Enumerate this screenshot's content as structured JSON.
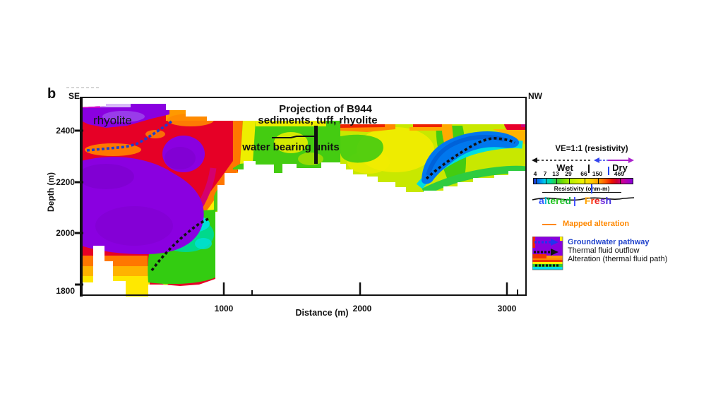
{
  "panel_label": "b",
  "plot": {
    "corner_left": "SE",
    "corner_right": "NW",
    "xlabel": "Distance (m)",
    "ylabel": "Depth (m)",
    "x_tick_labels": [
      "1000",
      "2000",
      "3000"
    ],
    "y_tick_labels": [
      "2400",
      "2200",
      "2000",
      "1800"
    ],
    "annotations": {
      "rhyolite": "rhyolite",
      "projection_line1": "Projection of B944",
      "projection_line2": "sediments, tuff, rhyolite",
      "water_bearing": "water bearing units"
    }
  },
  "legend": {
    "ve_label": "VE=1:1 (resistivity)",
    "wet": "Wet",
    "dry": "Dry",
    "divider": "|",
    "colorbar_values": [
      "4",
      "7",
      "13",
      "29",
      "66",
      "150",
      "469"
    ],
    "colorbar_label": "Resistivity (ohm-m)",
    "altered_word": "altered",
    "altered_letter_colors": [
      "#3355ff",
      "#00bbdd",
      "#11bb55",
      "#22c522",
      "#2ec522",
      "#22c522",
      "#15b53a"
    ],
    "fresh_word": "Fresh",
    "fresh_letter_colors": [
      "#ffa200",
      "#ff3300",
      "#ee2222",
      "#7733dd",
      "#4433dd"
    ],
    "items": [
      {
        "label": "Mapped alteration",
        "color": "#ff8800",
        "symbol": "orange-line"
      },
      {
        "label": "Groundwater pathway",
        "color": "#2244cc",
        "symbol": "blue-dashed-arrow"
      },
      {
        "label": "Thermal fluid outflow",
        "color": "#111111",
        "symbol": "black-dashed-arrow"
      },
      {
        "label": "Alteration (thermal fluid path)",
        "color": "#111111",
        "symbol": "black-dashed-line"
      }
    ]
  },
  "colors": {
    "purple_high_res": "#8a00e0",
    "red": "#e60026",
    "orange": "#ff7700",
    "yellow": "#ffe800",
    "green": "#33cc11",
    "cyan": "#00e0d8",
    "blue_low_res": "#0077ee",
    "groundwater_blue": "#2244cc",
    "mapped_alteration_orange": "#ff8800"
  },
  "chart_data": {
    "type": "heatmap",
    "subtype": "resistivity-cross-section",
    "xlabel": "Distance (m)",
    "ylabel": "Depth (m)",
    "xlim": [
      0,
      3180
    ],
    "ylim": [
      1800,
      2520
    ],
    "x_ticks": [
      1000,
      2000,
      3000
    ],
    "y_ticks": [
      2400,
      2200,
      2000,
      1800
    ],
    "orientation": {
      "left": "SE",
      "right": "NW"
    },
    "colorbar": {
      "label": "Resistivity (ohm-m)",
      "tick_values": [
        4,
        7,
        13,
        29,
        66,
        150,
        469
      ],
      "scale": "log",
      "wet_range_ohm_m": [
        4,
        150
      ],
      "dry_range_ohm_m": [
        150,
        469
      ],
      "altered_range_ohm_m": [
        4,
        29
      ],
      "fresh_range_ohm_m": [
        29,
        469
      ]
    },
    "features": [
      {
        "name": "high-resistivity rhyolite body (purple, >469 ohm-m)",
        "distance_m": [
          0,
          950
        ],
        "elevation_m": [
          1850,
          2510
        ]
      },
      {
        "name": "low-resistivity wet zone (blue, 4-13 ohm-m)",
        "distance_m": [
          2430,
          3140
        ],
        "elevation_m": [
          2150,
          2330
        ]
      },
      {
        "name": "altered zone (cyan/green) on SE flank",
        "distance_m": [
          480,
          980
        ],
        "elevation_m": [
          1840,
          2110
        ]
      },
      {
        "name": "water bearing units (green band)",
        "distance_m": [
          1050,
          1900
        ],
        "elevation_m": [
          2230,
          2400
        ]
      },
      {
        "name": "B944 well projection (black bar)",
        "distance_m": 1660,
        "elevation_m": [
          2270,
          2420
        ]
      },
      {
        "name": "groundwater pathway (blue dashed)",
        "from_xy": [
          20,
          2330
        ],
        "to_xy": [
          630,
          2440
        ]
      },
      {
        "name": "thermal fluid path SE (black dashed)",
        "from_xy": [
          480,
          1860
        ],
        "to_xy": [
          900,
          2060
        ]
      },
      {
        "name": "thermal fluid path NW (black dashed)",
        "from_xy": [
          2460,
          2220
        ],
        "to_xy": [
          3100,
          2350
        ]
      }
    ]
  }
}
